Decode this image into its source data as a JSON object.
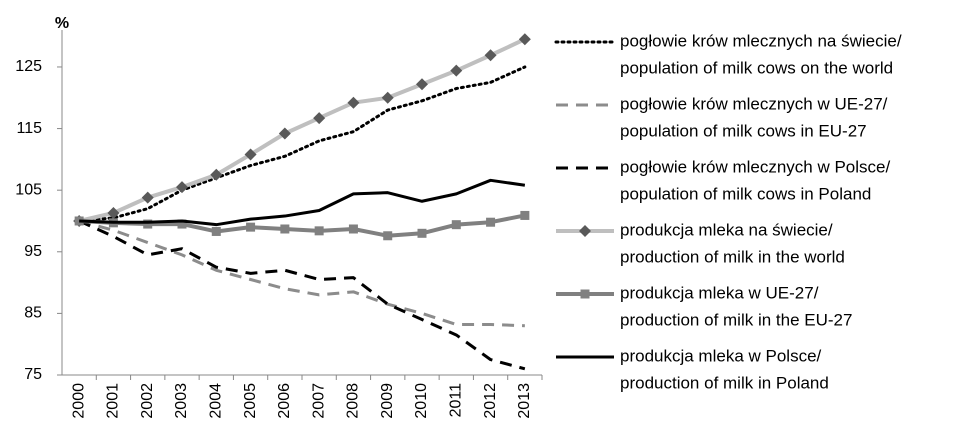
{
  "chart_data": {
    "type": "line",
    "y_unit_label": "%",
    "categories": [
      "2000",
      "2001",
      "2002",
      "2003",
      "2004",
      "2005",
      "2006",
      "2007",
      "2008",
      "2009",
      "2010",
      "2011",
      "2012",
      "2013"
    ],
    "ylim": [
      75,
      131
    ],
    "yticks": [
      75,
      85,
      95,
      105,
      115,
      125
    ],
    "grid": false,
    "legend": "right",
    "series": [
      {
        "name": [
          "pogłowie krów mlecznych na świecie/",
          "population of milk cows on the world"
        ],
        "color": "#000000",
        "dash": "dotted",
        "width": 3,
        "values": [
          100,
          100.5,
          102,
          105,
          107,
          109,
          110.5,
          113,
          114.5,
          118,
          119.5,
          121.5,
          122.5,
          125
        ]
      },
      {
        "name": [
          "pogłowie krów mlecznych w UE-27/",
          "population of milk cows in EU-27"
        ],
        "color": "#8c8c8c",
        "dash": "dashed",
        "width": 3,
        "values": [
          100,
          98.5,
          96.5,
          94.5,
          92,
          90.5,
          89,
          88,
          88.5,
          86.5,
          85,
          83.2,
          83.2,
          83
        ]
      },
      {
        "name": [
          "pogłowie krów mlecznych w Polsce/",
          "population of milk cows in Poland"
        ],
        "color": "#000000",
        "dash": "dashed",
        "width": 3,
        "values": [
          100,
          97.5,
          94.5,
          95.5,
          92.5,
          91.5,
          92,
          90.5,
          90.8,
          86.5,
          84,
          81.5,
          77.5,
          76
        ]
      },
      {
        "name": [
          "produkcja mleka na świecie/",
          "production of milk in the world"
        ],
        "color": "#bfbfbf",
        "dash": "solid",
        "width": 4,
        "marker": "diamond",
        "marker_color": "#595959",
        "values": [
          100,
          101.3,
          103.8,
          105.5,
          107.5,
          110.8,
          114.2,
          116.7,
          119.2,
          120,
          122.2,
          124.4,
          126.9,
          129.5
        ]
      },
      {
        "name": [
          "produkcja mleka w UE-27/",
          "production of milk in the EU-27"
        ],
        "color": "#808080",
        "dash": "solid",
        "width": 4,
        "marker": "square",
        "marker_color": "#808080",
        "values": [
          100,
          99.7,
          99.5,
          99.5,
          98.3,
          99,
          98.7,
          98.4,
          98.7,
          97.6,
          98,
          99.4,
          99.8,
          100.9
        ]
      },
      {
        "name": [
          "produkcja mleka w Polsce/",
          "production of milk in Poland"
        ],
        "color": "#000000",
        "dash": "solid",
        "width": 3,
        "values": [
          100,
          99.8,
          99.8,
          100,
          99.4,
          100.3,
          100.8,
          101.7,
          104.4,
          104.6,
          103.2,
          104.4,
          106.6,
          105.8
        ]
      }
    ]
  }
}
